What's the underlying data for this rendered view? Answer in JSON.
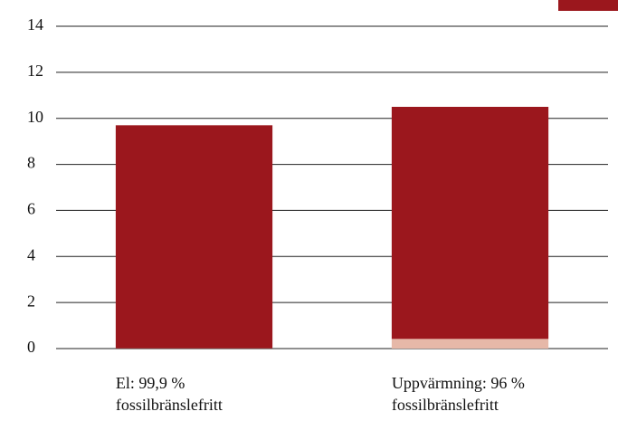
{
  "chart_data": {
    "type": "stacked_bar",
    "categories": [
      [
        "El: 99,9 %",
        "fossilbränslefritt"
      ],
      [
        "Uppvärmning: 96 %",
        "fossilbränslefritt"
      ]
    ],
    "series": [
      {
        "color": "#e6b8a8",
        "values": [
          0.01,
          0.42
        ]
      },
      {
        "color": "#9b171d",
        "values": [
          9.69,
          10.08
        ]
      }
    ],
    "ylim": [
      0,
      14
    ],
    "yticks": [
      0,
      2,
      4,
      6,
      8,
      10,
      12,
      14
    ],
    "grid": true
  }
}
